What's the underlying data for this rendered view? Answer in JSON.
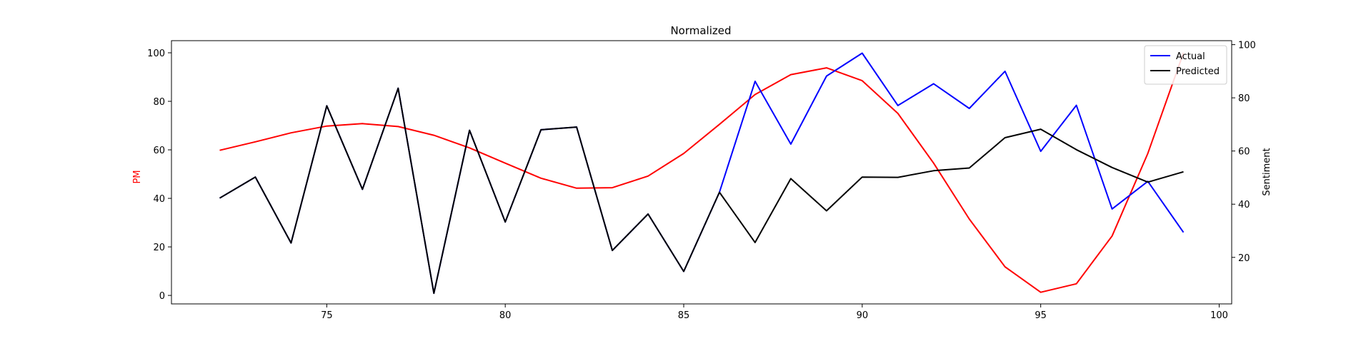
{
  "chart_data": {
    "type": "line",
    "title": "Normalized",
    "xlabel": "",
    "ylabel_left": "PM",
    "ylabel_right": "Sentiment",
    "xlim": [
      70.65,
      100.35
    ],
    "ylim_left": [
      -3.5,
      105
    ],
    "ylim_right": [
      2.5,
      101.5
    ],
    "xticks": [
      75,
      80,
      85,
      90,
      95,
      100
    ],
    "yticks_left": [
      0,
      20,
      40,
      60,
      80,
      100
    ],
    "yticks_right": [
      20,
      40,
      60,
      80,
      100
    ],
    "grid": false,
    "legend_position": "top-right",
    "x": [
      72,
      73,
      74,
      75,
      76,
      77,
      78,
      79,
      80,
      81,
      82,
      83,
      84,
      85,
      86,
      87,
      88,
      89,
      90,
      91,
      92,
      93,
      94,
      95,
      96,
      97,
      98,
      99
    ],
    "series": [
      {
        "name": "",
        "axis": "left",
        "color": "#ff0000",
        "values": [
          59.8,
          63.3,
          67.0,
          69.8,
          70.8,
          69.6,
          66.0,
          60.8,
          54.5,
          48.3,
          44.2,
          44.4,
          49.2,
          58.5,
          70.5,
          82.8,
          91.0,
          93.8,
          88.5,
          75.0,
          54.5,
          31.5,
          11.8,
          1.3,
          4.8,
          24.5,
          58.5,
          100.0
        ]
      },
      {
        "name": "Actual",
        "axis": "right",
        "color": "#0000ff",
        "values": [
          42.3,
          50.2,
          25.4,
          77.0,
          45.6,
          83.6,
          6.5,
          67.8,
          33.3,
          68.0,
          69.0,
          22.6,
          36.3,
          14.7,
          44.5,
          86.2,
          62.6,
          88.2,
          96.8,
          77.1,
          85.3,
          76.0,
          90.0,
          59.9,
          77.2,
          38.2,
          48.6,
          29.4
        ]
      },
      {
        "name": "Predicted",
        "axis": "right",
        "color": "#000000",
        "values": [
          42.3,
          50.2,
          25.4,
          77.0,
          45.6,
          83.6,
          6.5,
          67.8,
          33.3,
          68.0,
          69.0,
          22.6,
          36.3,
          14.7,
          44.5,
          25.6,
          49.6,
          37.5,
          50.2,
          50.1,
          52.6,
          53.6,
          65.0,
          68.2,
          60.5,
          53.8,
          48.3,
          52.2
        ]
      }
    ]
  }
}
